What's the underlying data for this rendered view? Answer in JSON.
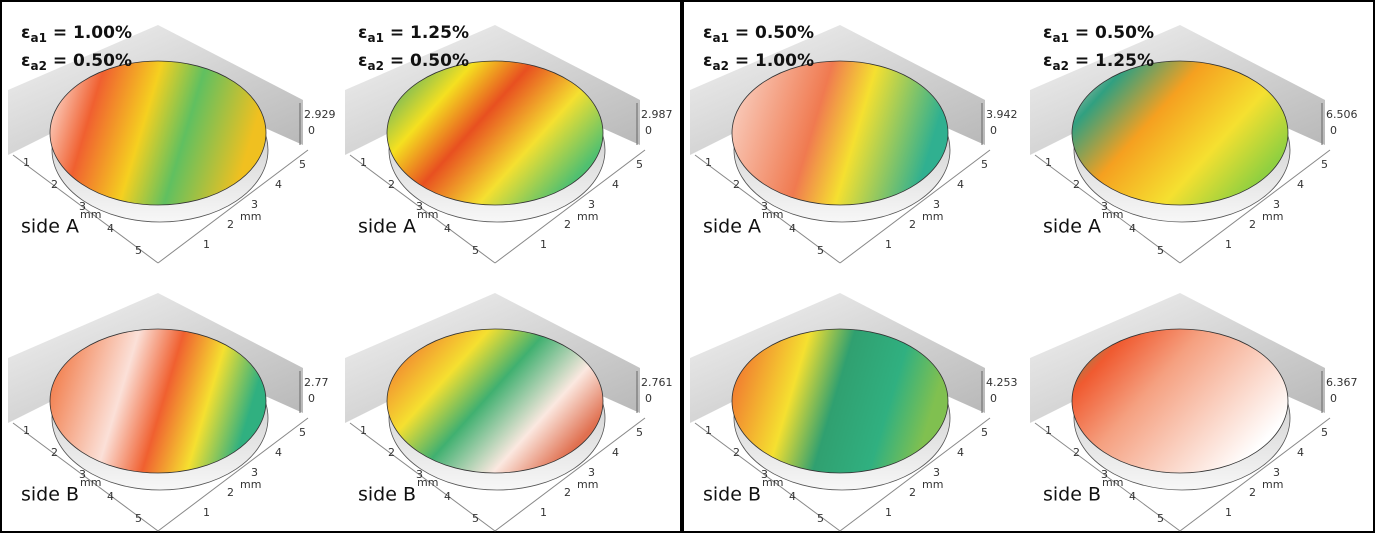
{
  "figure": {
    "groups": [
      {
        "panels": [
          {
            "strain": [
              {
                "symbol": "ε",
                "sub": "a1",
                "rest": " = 1.00%"
              },
              {
                "symbol": "ε",
                "sub": "a2",
                "rest": " = 0.50%"
              }
            ],
            "side": "side A",
            "zmax": "2.929",
            "zero": "0",
            "axis_labels": [
              "mm",
              "mm"
            ],
            "left_ticks": [
              "1",
              "2",
              "3",
              "4",
              "5"
            ],
            "right_ticks": [
              "1",
              "2",
              "3",
              "4",
              "5"
            ]
          },
          {
            "strain": [
              {
                "symbol": "ε",
                "sub": "a1",
                "rest": " = 1.25%"
              },
              {
                "symbol": "ε",
                "sub": "a2",
                "rest": " = 0.50%"
              }
            ],
            "side": "side A",
            "zmax": "2.987",
            "zero": "0",
            "axis_labels": [
              "mm",
              "mm"
            ],
            "left_ticks": [
              "1",
              "2",
              "3",
              "4",
              "5"
            ],
            "right_ticks": [
              "1",
              "2",
              "3",
              "4",
              "5"
            ]
          },
          {
            "side": "side B",
            "zmax": "2.77",
            "zero": "0",
            "axis_labels": [
              "mm",
              "mm"
            ],
            "left_ticks": [
              "1",
              "2",
              "3",
              "4",
              "5"
            ],
            "right_ticks": [
              "1",
              "2",
              "3",
              "4",
              "5"
            ]
          },
          {
            "side": "side B",
            "zmax": "2.761",
            "zero": "0",
            "axis_labels": [
              "mm",
              "mm"
            ],
            "left_ticks": [
              "1",
              "2",
              "3",
              "4",
              "5"
            ],
            "right_ticks": [
              "1",
              "2",
              "3",
              "4",
              "5"
            ]
          }
        ]
      },
      {
        "panels": [
          {
            "strain": [
              {
                "symbol": "ε",
                "sub": "a1",
                "rest": " = 0.50%"
              },
              {
                "symbol": "ε",
                "sub": "a2",
                "rest": " = 1.00%"
              }
            ],
            "side": "side A",
            "zmax": "3.942",
            "zero": "0",
            "axis_labels": [
              "mm",
              "mm"
            ],
            "left_ticks": [
              "1",
              "2",
              "3",
              "4",
              "5"
            ],
            "right_ticks": [
              "1",
              "2",
              "3",
              "4",
              "5"
            ]
          },
          {
            "strain": [
              {
                "symbol": "ε",
                "sub": "a1",
                "rest": " = 0.50%"
              },
              {
                "symbol": "ε",
                "sub": "a2",
                "rest": " = 1.25%"
              }
            ],
            "side": "side A",
            "zmax": "6.506",
            "zero": "0",
            "axis_labels": [
              "mm",
              "mm"
            ],
            "left_ticks": [
              "1",
              "2",
              "3",
              "4",
              "5"
            ],
            "right_ticks": [
              "1",
              "2",
              "3",
              "4",
              "5"
            ]
          },
          {
            "side": "side B",
            "zmax": "4.253",
            "zero": "0",
            "axis_labels": [
              "mm",
              "mm"
            ],
            "left_ticks": [
              "1",
              "2",
              "3",
              "4",
              "5"
            ],
            "right_ticks": [
              "1",
              "2",
              "3",
              "4",
              "5"
            ]
          },
          {
            "side": "side B",
            "zmax": "6.367",
            "zero": "0",
            "axis_labels": [
              "mm",
              "mm"
            ],
            "left_ticks": [
              "1",
              "2",
              "3",
              "4",
              "5"
            ],
            "right_ticks": [
              "1",
              "2",
              "3",
              "4",
              "5"
            ]
          }
        ]
      }
    ]
  }
}
